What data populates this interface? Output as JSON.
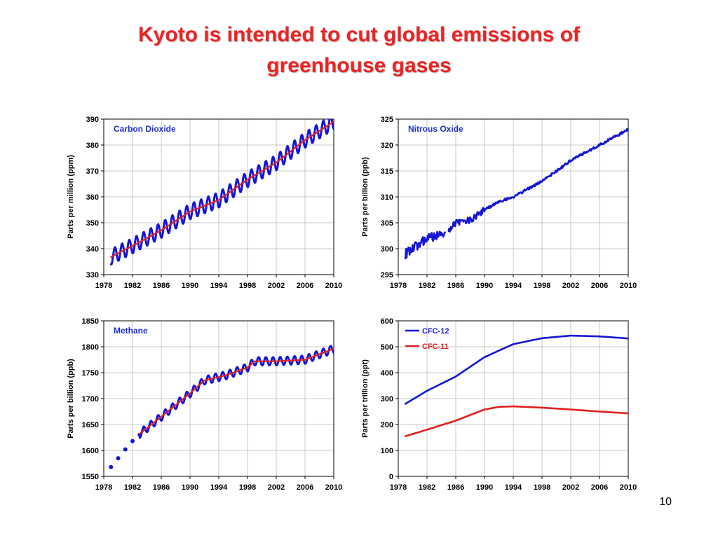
{
  "slide": {
    "title_line1": "Kyoto is intended to cut global emissions of",
    "title_line2": "greenhouse gases",
    "page_number": "10"
  },
  "colors": {
    "title": "#ee2222",
    "blue": "#1515d6",
    "red": "#e02020",
    "label": "#1f2fd0"
  },
  "chart_data": [
    {
      "type": "line",
      "title": "Carbon Dioxide",
      "xlabel": "",
      "ylabel": "Parts per million (ppm)",
      "xlim": [
        1978,
        2010
      ],
      "ylim": [
        330,
        390
      ],
      "xticks": [
        1978,
        1982,
        1986,
        1990,
        1994,
        1998,
        2002,
        2006,
        2010
      ],
      "yticks": [
        330,
        340,
        350,
        360,
        370,
        380,
        390
      ],
      "grid": true,
      "series": [
        {
          "kind": "monthly",
          "color": "#1515d6",
          "seasonal_amplitude": 3,
          "x": [
            1979,
            1982,
            1986,
            1990,
            1994,
            1998,
            2002,
            2006,
            2010
          ],
          "y": [
            336.8,
            341.1,
            347.1,
            354.3,
            358.8,
            366.7,
            373.2,
            381.9,
            389.0
          ]
        },
        {
          "kind": "trend",
          "color": "#e02020",
          "x": [
            1979,
            1982,
            1986,
            1990,
            1994,
            1998,
            2002,
            2006,
            2010
          ],
          "y": [
            336.8,
            341.1,
            347.1,
            354.3,
            358.8,
            366.7,
            373.2,
            381.9,
            389.0
          ]
        }
      ]
    },
    {
      "type": "line",
      "title": "Nitrous Oxide",
      "xlabel": "",
      "ylabel": "Parts per billion (ppb)",
      "xlim": [
        1978,
        2010
      ],
      "ylim": [
        295,
        325
      ],
      "xticks": [
        1978,
        1982,
        1986,
        1990,
        1994,
        1998,
        2002,
        2006,
        2010
      ],
      "yticks": [
        295,
        300,
        305,
        310,
        315,
        320,
        325
      ],
      "grid": true,
      "series": [
        {
          "kind": "noisy",
          "color": "#1515d6",
          "noise": 0.9,
          "x": [
            1979,
            1980,
            1982,
            1984.5
          ],
          "y": [
            299.0,
            300.0,
            302.0,
            303.0
          ]
        },
        {
          "kind": "noisy",
          "color": "#1515d6",
          "noise": 0.6,
          "x": [
            1985,
            1986,
            1988,
            1990
          ],
          "y": [
            303.5,
            305.0,
            305.5,
            307.5
          ]
        },
        {
          "kind": "noisy",
          "color": "#1515d6",
          "noise": 0.25,
          "x": [
            1990,
            1992,
            1994,
            1998,
            2002,
            2006,
            2010
          ],
          "y": [
            307.5,
            309.0,
            310.0,
            313.0,
            317.0,
            320.0,
            323.0
          ]
        }
      ]
    },
    {
      "type": "line",
      "title": "Methane",
      "xlabel": "",
      "ylabel": "Parts per billion (ppb)",
      "xlim": [
        1978,
        2010
      ],
      "ylim": [
        1550,
        1850
      ],
      "xticks": [
        1978,
        1982,
        1986,
        1990,
        1994,
        1998,
        2002,
        2006,
        2010
      ],
      "yticks": [
        1550,
        1600,
        1650,
        1700,
        1750,
        1800,
        1850
      ],
      "grid": true,
      "series": [
        {
          "kind": "points",
          "color": "#1515d6",
          "x": [
            1979,
            1980,
            1981,
            1982,
            1983
          ],
          "y": [
            1568,
            1585,
            1602,
            1618,
            1630
          ]
        },
        {
          "kind": "monthly",
          "color": "#1515d6",
          "seasonal_amplitude": 8,
          "x": [
            1983,
            1986,
            1990,
            1992,
            1995,
            1998,
            1999,
            2002,
            2006,
            2010
          ],
          "y": [
            1632,
            1665,
            1710,
            1735,
            1745,
            1760,
            1772,
            1772,
            1775,
            1796
          ]
        },
        {
          "kind": "trend",
          "color": "#e02020",
          "x": [
            1983,
            1986,
            1990,
            1992,
            1995,
            1998,
            1999,
            2002,
            2006,
            2010
          ],
          "y": [
            1632,
            1665,
            1710,
            1735,
            1745,
            1760,
            1772,
            1772,
            1775,
            1796
          ]
        }
      ]
    },
    {
      "type": "line",
      "title": "",
      "xlabel": "",
      "ylabel": "Parts per trillion (ppt)",
      "xlim": [
        1978,
        2010
      ],
      "ylim": [
        0,
        600
      ],
      "xticks": [
        1978,
        1982,
        1986,
        1990,
        1994,
        1998,
        2002,
        2006,
        2010
      ],
      "yticks": [
        0,
        100,
        200,
        300,
        400,
        500,
        600
      ],
      "grid": true,
      "legend": "top-left",
      "series": [
        {
          "name": "CFC-12",
          "kind": "smooth",
          "color": "#1515d6",
          "x": [
            1979,
            1982,
            1986,
            1990,
            1994,
            1998,
            2002,
            2006,
            2010
          ],
          "y": [
            280,
            330,
            385,
            460,
            510,
            533,
            543,
            540,
            532
          ]
        },
        {
          "name": "CFC-11",
          "kind": "smooth",
          "color": "#e02020",
          "x": [
            1979,
            1982,
            1986,
            1990,
            1992,
            1994,
            1998,
            2002,
            2006,
            2010
          ],
          "y": [
            155,
            180,
            215,
            258,
            268,
            270,
            265,
            258,
            250,
            243
          ]
        }
      ]
    }
  ]
}
